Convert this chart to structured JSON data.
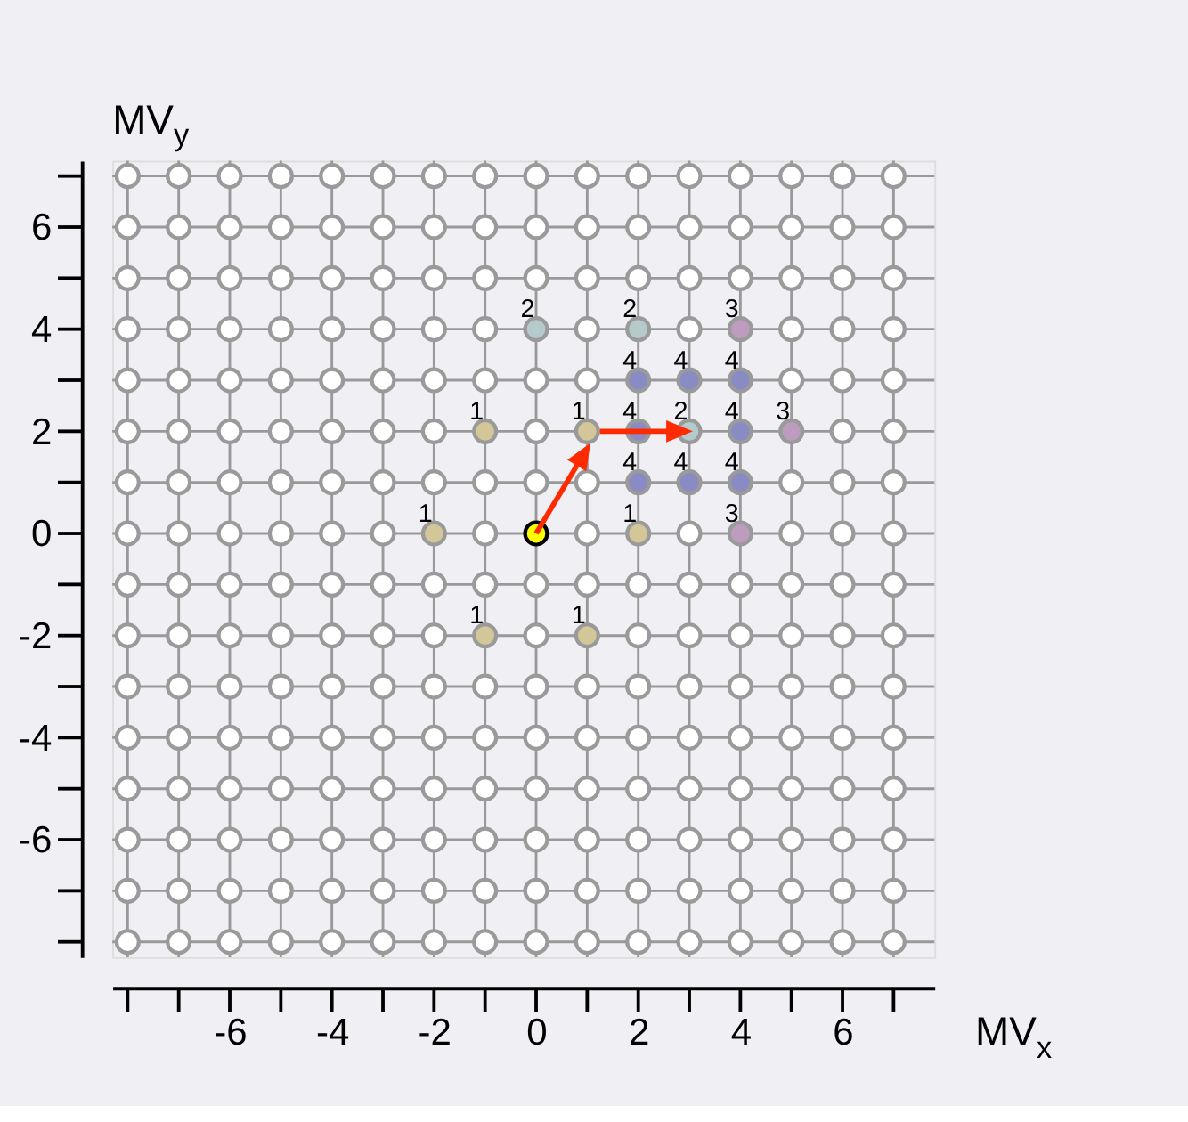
{
  "chart_data": {
    "type": "scatter",
    "xlabel": "MV$_{x}$",
    "ylabel": "MV$_{y}$",
    "xlim": [
      -8.3,
      7.8
    ],
    "ylim": [
      -8.3,
      7.3
    ],
    "xticks": [
      {
        "value": -8,
        "label": null
      },
      {
        "value": -7,
        "label": null
      },
      -6,
      {
        "value": -5,
        "label": null
      },
      -4,
      {
        "value": -3,
        "label": null
      },
      -2,
      {
        "value": -1,
        "label": null
      },
      0,
      {
        "value": 1,
        "label": null
      },
      2,
      {
        "value": 3,
        "label": null
      },
      4,
      {
        "value": 5,
        "label": null
      },
      6,
      {
        "value": 7,
        "label": null
      }
    ],
    "yticks": [
      {
        "value": -8,
        "label": null
      },
      {
        "value": -7,
        "label": null
      },
      -6,
      {
        "value": -5,
        "label": null
      },
      -4,
      {
        "value": -3,
        "label": null
      },
      -2,
      {
        "value": -1,
        "label": null
      },
      0,
      {
        "value": 1,
        "label": null
      },
      2,
      {
        "value": 3,
        "label": null
      },
      4,
      {
        "value": 5,
        "label": null
      },
      6,
      {
        "value": 7,
        "label": null
      }
    ],
    "grid": true,
    "marker": "circle",
    "series": [
      {
        "color": "#ffffff",
        "x": [
          -8,
          -7,
          -6,
          -5,
          -4,
          -3,
          -2,
          -1,
          0,
          1,
          2,
          3,
          4,
          5,
          6,
          7,
          -8,
          -7,
          -6,
          -5,
          -4,
          -3,
          -2,
          -1,
          0,
          1,
          2,
          3,
          4,
          5,
          6,
          7,
          -8,
          -7,
          -6,
          -5,
          -4,
          -3,
          -2,
          -1,
          0,
          1,
          2,
          3,
          4,
          5,
          6,
          7,
          -8,
          -7,
          -6,
          -5,
          -4,
          -3,
          -2,
          -1,
          1,
          3,
          5,
          6,
          7,
          -8,
          -7,
          -6,
          -5,
          -4,
          -3,
          -2,
          -1,
          0,
          1,
          5,
          6,
          7,
          -8,
          -7,
          -6,
          -5,
          -4,
          -3,
          -2,
          0,
          6,
          7,
          -8,
          -7,
          -6,
          -5,
          -4,
          -3,
          -2,
          -1,
          0,
          1,
          5,
          6,
          7,
          -8,
          -7,
          -6,
          -5,
          -4,
          -3,
          -1,
          1,
          3,
          5,
          6,
          7,
          -8,
          -7,
          -6,
          -5,
          -4,
          -3,
          -2,
          -1,
          0,
          1,
          2,
          3,
          4,
          5,
          6,
          7,
          -8,
          -7,
          -6,
          -5,
          -4,
          -3,
          -2,
          0,
          2,
          3,
          4,
          5,
          6,
          7,
          -8,
          -7,
          -6,
          -5,
          -4,
          -3,
          -2,
          -1,
          0,
          1,
          2,
          3,
          4,
          5,
          6,
          7,
          -8,
          -7,
          -6,
          -5,
          -4,
          -3,
          -2,
          -1,
          0,
          1,
          2,
          3,
          4,
          5,
          6,
          7,
          -8,
          -7,
          -6,
          -5,
          -4,
          -3,
          -2,
          -1,
          0,
          1,
          2,
          3,
          4,
          5,
          6,
          7,
          -8,
          -7,
          -6,
          -5,
          -4,
          -3,
          -2,
          -1,
          0,
          1,
          2,
          3,
          4,
          5,
          6,
          7,
          -8,
          -7,
          -6,
          -5,
          -4,
          -3,
          -2,
          -1,
          0,
          1,
          2,
          3,
          4,
          5,
          6,
          7,
          -8,
          -7,
          -6,
          -5,
          -4,
          -3,
          -2,
          -1,
          0,
          1,
          2,
          3,
          4,
          5,
          6,
          7
        ],
        "values": [
          7,
          7,
          7,
          7,
          7,
          7,
          7,
          7,
          7,
          7,
          7,
          7,
          7,
          7,
          7,
          7,
          6,
          6,
          6,
          6,
          6,
          6,
          6,
          6,
          6,
          6,
          6,
          6,
          6,
          6,
          6,
          6,
          5,
          5,
          5,
          5,
          5,
          5,
          5,
          5,
          5,
          5,
          5,
          5,
          5,
          5,
          5,
          5,
          4,
          4,
          4,
          4,
          4,
          4,
          4,
          4,
          4,
          4,
          4,
          4,
          4,
          3,
          3,
          3,
          3,
          3,
          3,
          3,
          3,
          3,
          3,
          3,
          3,
          3,
          2,
          2,
          2,
          2,
          2,
          2,
          2,
          2,
          2,
          2,
          1,
          1,
          1,
          1,
          1,
          1,
          1,
          1,
          1,
          1,
          1,
          1,
          1,
          0,
          0,
          0,
          0,
          0,
          0,
          0,
          0,
          0,
          0,
          0,
          0,
          -1,
          -1,
          -1,
          -1,
          -1,
          -1,
          -1,
          -1,
          -1,
          -1,
          -1,
          -1,
          -1,
          -1,
          -1,
          -1,
          -2,
          -2,
          -2,
          -2,
          -2,
          -2,
          -2,
          -2,
          -2,
          -2,
          -2,
          -2,
          -2,
          -2,
          -3,
          -3,
          -3,
          -3,
          -3,
          -3,
          -3,
          -3,
          -3,
          -3,
          -3,
          -3,
          -3,
          -3,
          -3,
          -3,
          -4,
          -4,
          -4,
          -4,
          -4,
          -4,
          -4,
          -4,
          -4,
          -4,
          -4,
          -4,
          -4,
          -4,
          -4,
          -4,
          -5,
          -5,
          -5,
          -5,
          -5,
          -5,
          -5,
          -5,
          -5,
          -5,
          -5,
          -5,
          -5,
          -5,
          -5,
          -5,
          -6,
          -6,
          -6,
          -6,
          -6,
          -6,
          -6,
          -6,
          -6,
          -6,
          -6,
          -6,
          -6,
          -6,
          -6,
          -6,
          -7,
          -7,
          -7,
          -7,
          -7,
          -7,
          -7,
          -7,
          -7,
          -7,
          -7,
          -7,
          -7,
          -7,
          -7,
          -7,
          -8,
          -8,
          -8,
          -8,
          -8,
          -8,
          -8,
          -8,
          -8,
          -8,
          -8,
          -8,
          -8,
          -8,
          -8,
          -8
        ]
      },
      {
        "color": "#ffff00",
        "x": [
          0
        ],
        "values": [
          0
        ]
      },
      {
        "color": "#d3c799",
        "x": [
          -2,
          -1,
          1,
          2,
          -1,
          1
        ],
        "values": [
          0,
          2,
          2,
          0,
          -2,
          -2
        ]
      },
      {
        "color": "#b5cbcb",
        "x": [
          0,
          2,
          3
        ],
        "values": [
          4,
          4,
          2
        ]
      },
      {
        "color": "#bd9cbf",
        "x": [
          4,
          5,
          4
        ],
        "values": [
          4,
          2,
          0
        ]
      },
      {
        "color": "#8a8bc4",
        "x": [
          2,
          3,
          4,
          2,
          4,
          2,
          3,
          4
        ],
        "values": [
          3,
          3,
          3,
          2,
          2,
          1,
          1,
          1
        ]
      },
      {
        "type": "line",
        "color": "#ff2a00",
        "x": [
          0,
          0.9
        ],
        "values": [
          0,
          1.5
        ],
        "marker": "triangle"
      },
      {
        "type": "line",
        "color": "#ff2a00",
        "x": [
          1.25,
          2.75
        ],
        "values": [
          2,
          2
        ],
        "marker": "triangle"
      }
    ],
    "annotations": [
      {
        "text": "1",
        "x": -2,
        "y": 0
      },
      {
        "text": "1",
        "x": -1,
        "y": 2
      },
      {
        "text": "1",
        "x": 1,
        "y": 2
      },
      {
        "text": "1",
        "x": 2,
        "y": 0
      },
      {
        "text": "1",
        "x": -1,
        "y": -2
      },
      {
        "text": "1",
        "x": 1,
        "y": -2
      },
      {
        "text": "2",
        "x": 0,
        "y": 4
      },
      {
        "text": "2",
        "x": 2,
        "y": 4
      },
      {
        "text": "2",
        "x": 3,
        "y": 2
      },
      {
        "text": "3",
        "x": 4,
        "y": 4
      },
      {
        "text": "3",
        "x": 5,
        "y": 2
      },
      {
        "text": "3",
        "x": 4,
        "y": 0
      },
      {
        "text": "4",
        "x": 2,
        "y": 3
      },
      {
        "text": "4",
        "x": 3,
        "y": 3
      },
      {
        "text": "4",
        "x": 4,
        "y": 3
      },
      {
        "text": "4",
        "x": 2,
        "y": 2
      },
      {
        "text": "4",
        "x": 4,
        "y": 2
      },
      {
        "text": "4",
        "x": 2,
        "y": 1
      },
      {
        "text": "4",
        "x": 3,
        "y": 1
      },
      {
        "text": "4",
        "x": 4,
        "y": 1
      }
    ]
  }
}
